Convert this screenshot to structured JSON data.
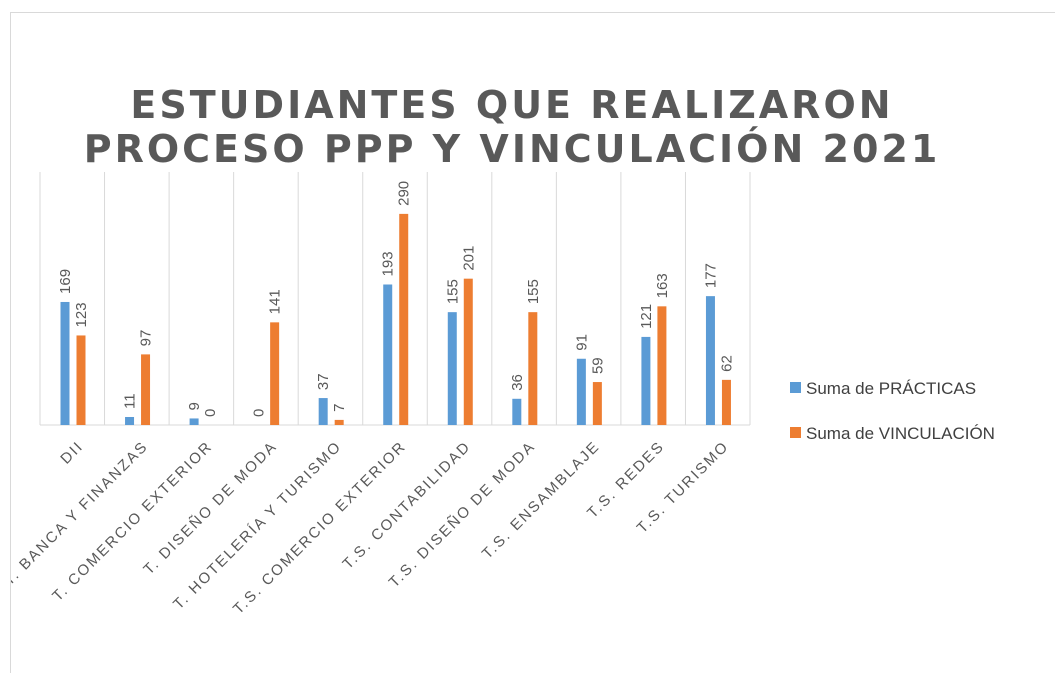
{
  "chart_data": {
    "type": "bar",
    "title": [
      "ESTUDIANTES QUE REALIZARON",
      "PROCESO  PPP Y VINCULACIÓN 2021"
    ],
    "categories": [
      "DII",
      "T. BANCA Y FINANZAS",
      "T. COMERCIO EXTERIOR",
      "T. DISEÑO DE MODA",
      "T. HOTELERÍA Y TURISMO",
      "T.S. COMERCIO EXTERIOR",
      "T.S. CONTABILIDAD",
      "T.S. DISEÑO DE MODA",
      "T.S. ENSAMBLAJE",
      "T.S. REDES",
      "T.S. TURISMO"
    ],
    "series": [
      {
        "name": "Suma de PRÁCTICAS",
        "color": "#5b9bd5",
        "values": [
          169,
          11,
          9,
          0,
          37,
          193,
          155,
          36,
          91,
          121,
          177
        ]
      },
      {
        "name": "Suma de VINCULACIÓN",
        "color": "#ed7d31",
        "values": [
          123,
          97,
          0,
          141,
          7,
          290,
          201,
          155,
          59,
          163,
          62
        ]
      }
    ],
    "grid": true,
    "legend": "right"
  }
}
